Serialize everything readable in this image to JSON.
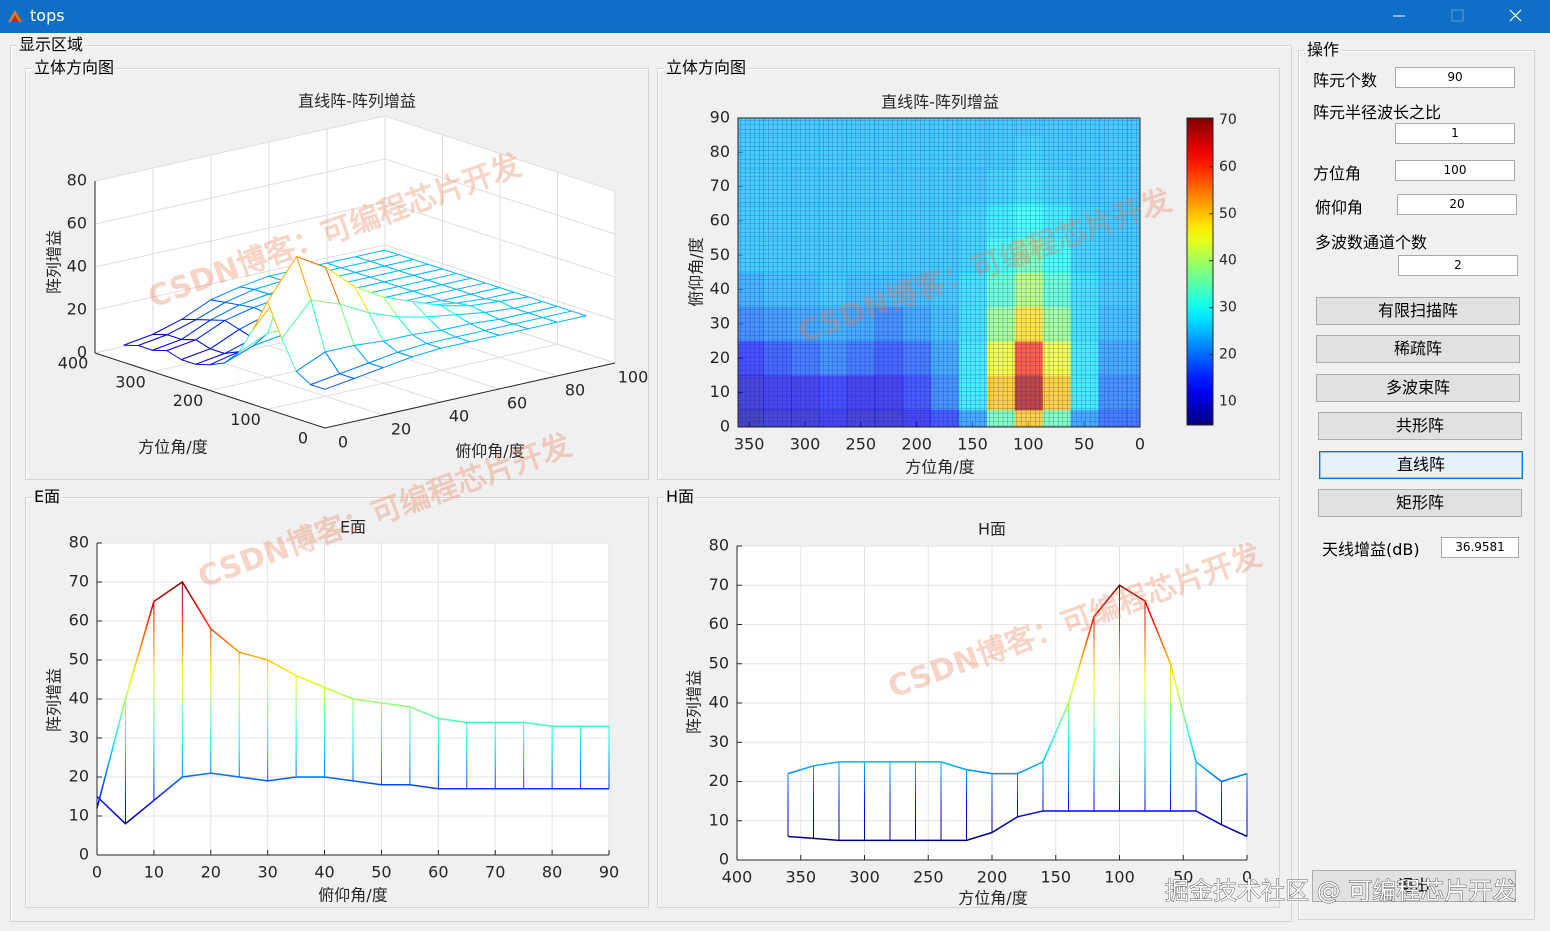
{
  "window": {
    "title": "tops"
  },
  "display_panel": {
    "title": "显示区域"
  },
  "panel_titles": [
    "立体方向图",
    "立体方向图",
    "E面",
    "H面"
  ],
  "chart_data": [
    {
      "type": "surface3d",
      "title": "直线阵-阵列增益",
      "x_label": "方位角/度",
      "y_label": "俯仰角/度",
      "z_label": "阵列增益",
      "xlim": [
        0,
        400
      ],
      "ylim": [
        0,
        100
      ],
      "zlim": [
        0,
        80
      ],
      "xticks": [
        0,
        100,
        200,
        300,
        400
      ],
      "yticks": [
        0,
        20,
        40,
        60,
        80,
        100
      ],
      "zticks": [
        0,
        20,
        40,
        60,
        80
      ],
      "grid": true,
      "colormap": "jet"
    },
    {
      "type": "heatmap",
      "title": "直线阵-阵列增益",
      "x_label": "方位角/度",
      "y_label": "俯仰角/度",
      "x": [
        0,
        25,
        50,
        75,
        100,
        125,
        150,
        175,
        200,
        225,
        250,
        275,
        300,
        325,
        350
      ],
      "y": [
        0,
        10,
        20,
        30,
        40,
        50,
        60,
        70,
        80,
        90
      ],
      "z": [
        [
          18,
          18,
          22,
          35,
          50,
          35,
          22,
          15,
          12,
          10,
          10,
          12,
          10,
          10,
          8
        ],
        [
          20,
          20,
          28,
          50,
          68,
          50,
          28,
          20,
          15,
          12,
          12,
          14,
          12,
          12,
          10
        ],
        [
          22,
          22,
          28,
          45,
          60,
          45,
          28,
          22,
          18,
          16,
          18,
          20,
          18,
          16,
          14
        ],
        [
          24,
          24,
          27,
          38,
          48,
          38,
          27,
          24,
          22,
          20,
          22,
          23,
          22,
          21,
          20
        ],
        [
          25,
          25,
          27,
          33,
          40,
          33,
          27,
          25,
          24,
          24,
          24,
          25,
          24,
          24,
          23
        ],
        [
          25,
          25,
          26,
          30,
          35,
          30,
          26,
          25,
          25,
          25,
          25,
          25,
          25,
          25,
          25
        ],
        [
          25,
          25,
          26,
          28,
          30,
          28,
          26,
          25,
          25,
          25,
          25,
          25,
          25,
          25,
          25
        ],
        [
          25,
          25,
          25,
          26,
          27,
          26,
          25,
          25,
          25,
          25,
          25,
          25,
          25,
          25,
          25
        ],
        [
          25,
          25,
          25,
          25,
          26,
          25,
          25,
          25,
          25,
          25,
          25,
          25,
          25,
          25,
          25
        ],
        [
          25,
          25,
          25,
          25,
          25,
          25,
          25,
          25,
          25,
          25,
          25,
          25,
          25,
          25,
          25
        ]
      ],
      "xlim": [
        0,
        360
      ],
      "ylim": [
        0,
        90
      ],
      "xdir": "reverse",
      "xticks": [
        0,
        50,
        100,
        150,
        200,
        250,
        300,
        350
      ],
      "yticks": [
        0,
        10,
        20,
        30,
        40,
        50,
        60,
        70,
        80,
        90
      ],
      "colormap": "jet",
      "clim": [
        5,
        70.4
      ],
      "colorbar_ticks": [
        10,
        20,
        30,
        40,
        50,
        60,
        70
      ]
    },
    {
      "type": "envelope",
      "title": "E面",
      "x_label": "俯仰角/度",
      "y_label": "阵列增益",
      "x": [
        0,
        5,
        10,
        15,
        20,
        25,
        30,
        35,
        40,
        45,
        50,
        55,
        60,
        65,
        70,
        75,
        80,
        85,
        90
      ],
      "series": [
        {
          "values": [
            12,
            40,
            65,
            70,
            58,
            52,
            50,
            46,
            43,
            40,
            39,
            38,
            35,
            34,
            34,
            34,
            33,
            33,
            33
          ]
        },
        {
          "values": [
            15,
            8,
            14,
            20,
            21,
            20,
            19,
            20,
            20,
            19,
            18,
            18,
            17,
            17,
            17,
            17,
            17,
            17,
            17
          ]
        }
      ],
      "xlim": [
        0,
        90
      ],
      "ylim": [
        0,
        80
      ],
      "xticks": [
        0,
        10,
        20,
        30,
        40,
        50,
        60,
        70,
        80,
        90
      ],
      "yticks": [
        0,
        10,
        20,
        30,
        40,
        50,
        60,
        70,
        80
      ],
      "grid": true,
      "colormap": "jet",
      "clim": [
        5,
        70.4
      ]
    },
    {
      "type": "envelope",
      "title": "H面",
      "x_label": "方位角/度",
      "y_label": "阵列增益",
      "x": [
        0,
        20,
        40,
        60,
        80,
        100,
        120,
        140,
        160,
        180,
        200,
        220,
        240,
        260,
        280,
        300,
        320,
        340,
        360
      ],
      "series": [
        {
          "values": [
            22,
            20,
            25,
            50,
            66,
            70,
            62,
            40,
            25,
            22,
            22,
            23,
            25,
            25,
            25,
            25,
            25,
            24,
            22
          ]
        },
        {
          "values": [
            6,
            9,
            12.5,
            12.5,
            12.5,
            12.5,
            12.5,
            12.5,
            12.5,
            11,
            7,
            5,
            5,
            5,
            5,
            5,
            5,
            5.5,
            6
          ]
        }
      ],
      "xlim": [
        0,
        400
      ],
      "ylim": [
        0,
        80
      ],
      "xdir": "reverse",
      "xticks": [
        0,
        50,
        100,
        150,
        200,
        250,
        300,
        350,
        400
      ],
      "yticks": [
        0,
        10,
        20,
        30,
        40,
        50,
        60,
        70,
        80
      ],
      "grid": true,
      "colormap": "jet",
      "clim": [
        5,
        70.4
      ]
    }
  ],
  "controls": {
    "title": "操作",
    "fields": [
      {
        "label": "阵元个数",
        "value": 90
      },
      {
        "label": "阵元半径波长之比",
        "value": 1
      },
      {
        "label": "方位角",
        "value": 100
      },
      {
        "label": "俯仰角",
        "value": 20
      },
      {
        "label": "多波数通道个数",
        "value": 2
      }
    ],
    "buttons": [
      "有限扫描阵",
      "稀疏阵",
      "多波束阵",
      "共形阵",
      "直线阵",
      "矩形阵"
    ],
    "gain": {
      "label": "天线增益(dB)",
      "value": 36.9581
    },
    "exit": "退出"
  },
  "watermarks": [
    "CSDN博客：可编程芯片开发",
    "掘金技术社区 @ 可编程芯片开发"
  ]
}
